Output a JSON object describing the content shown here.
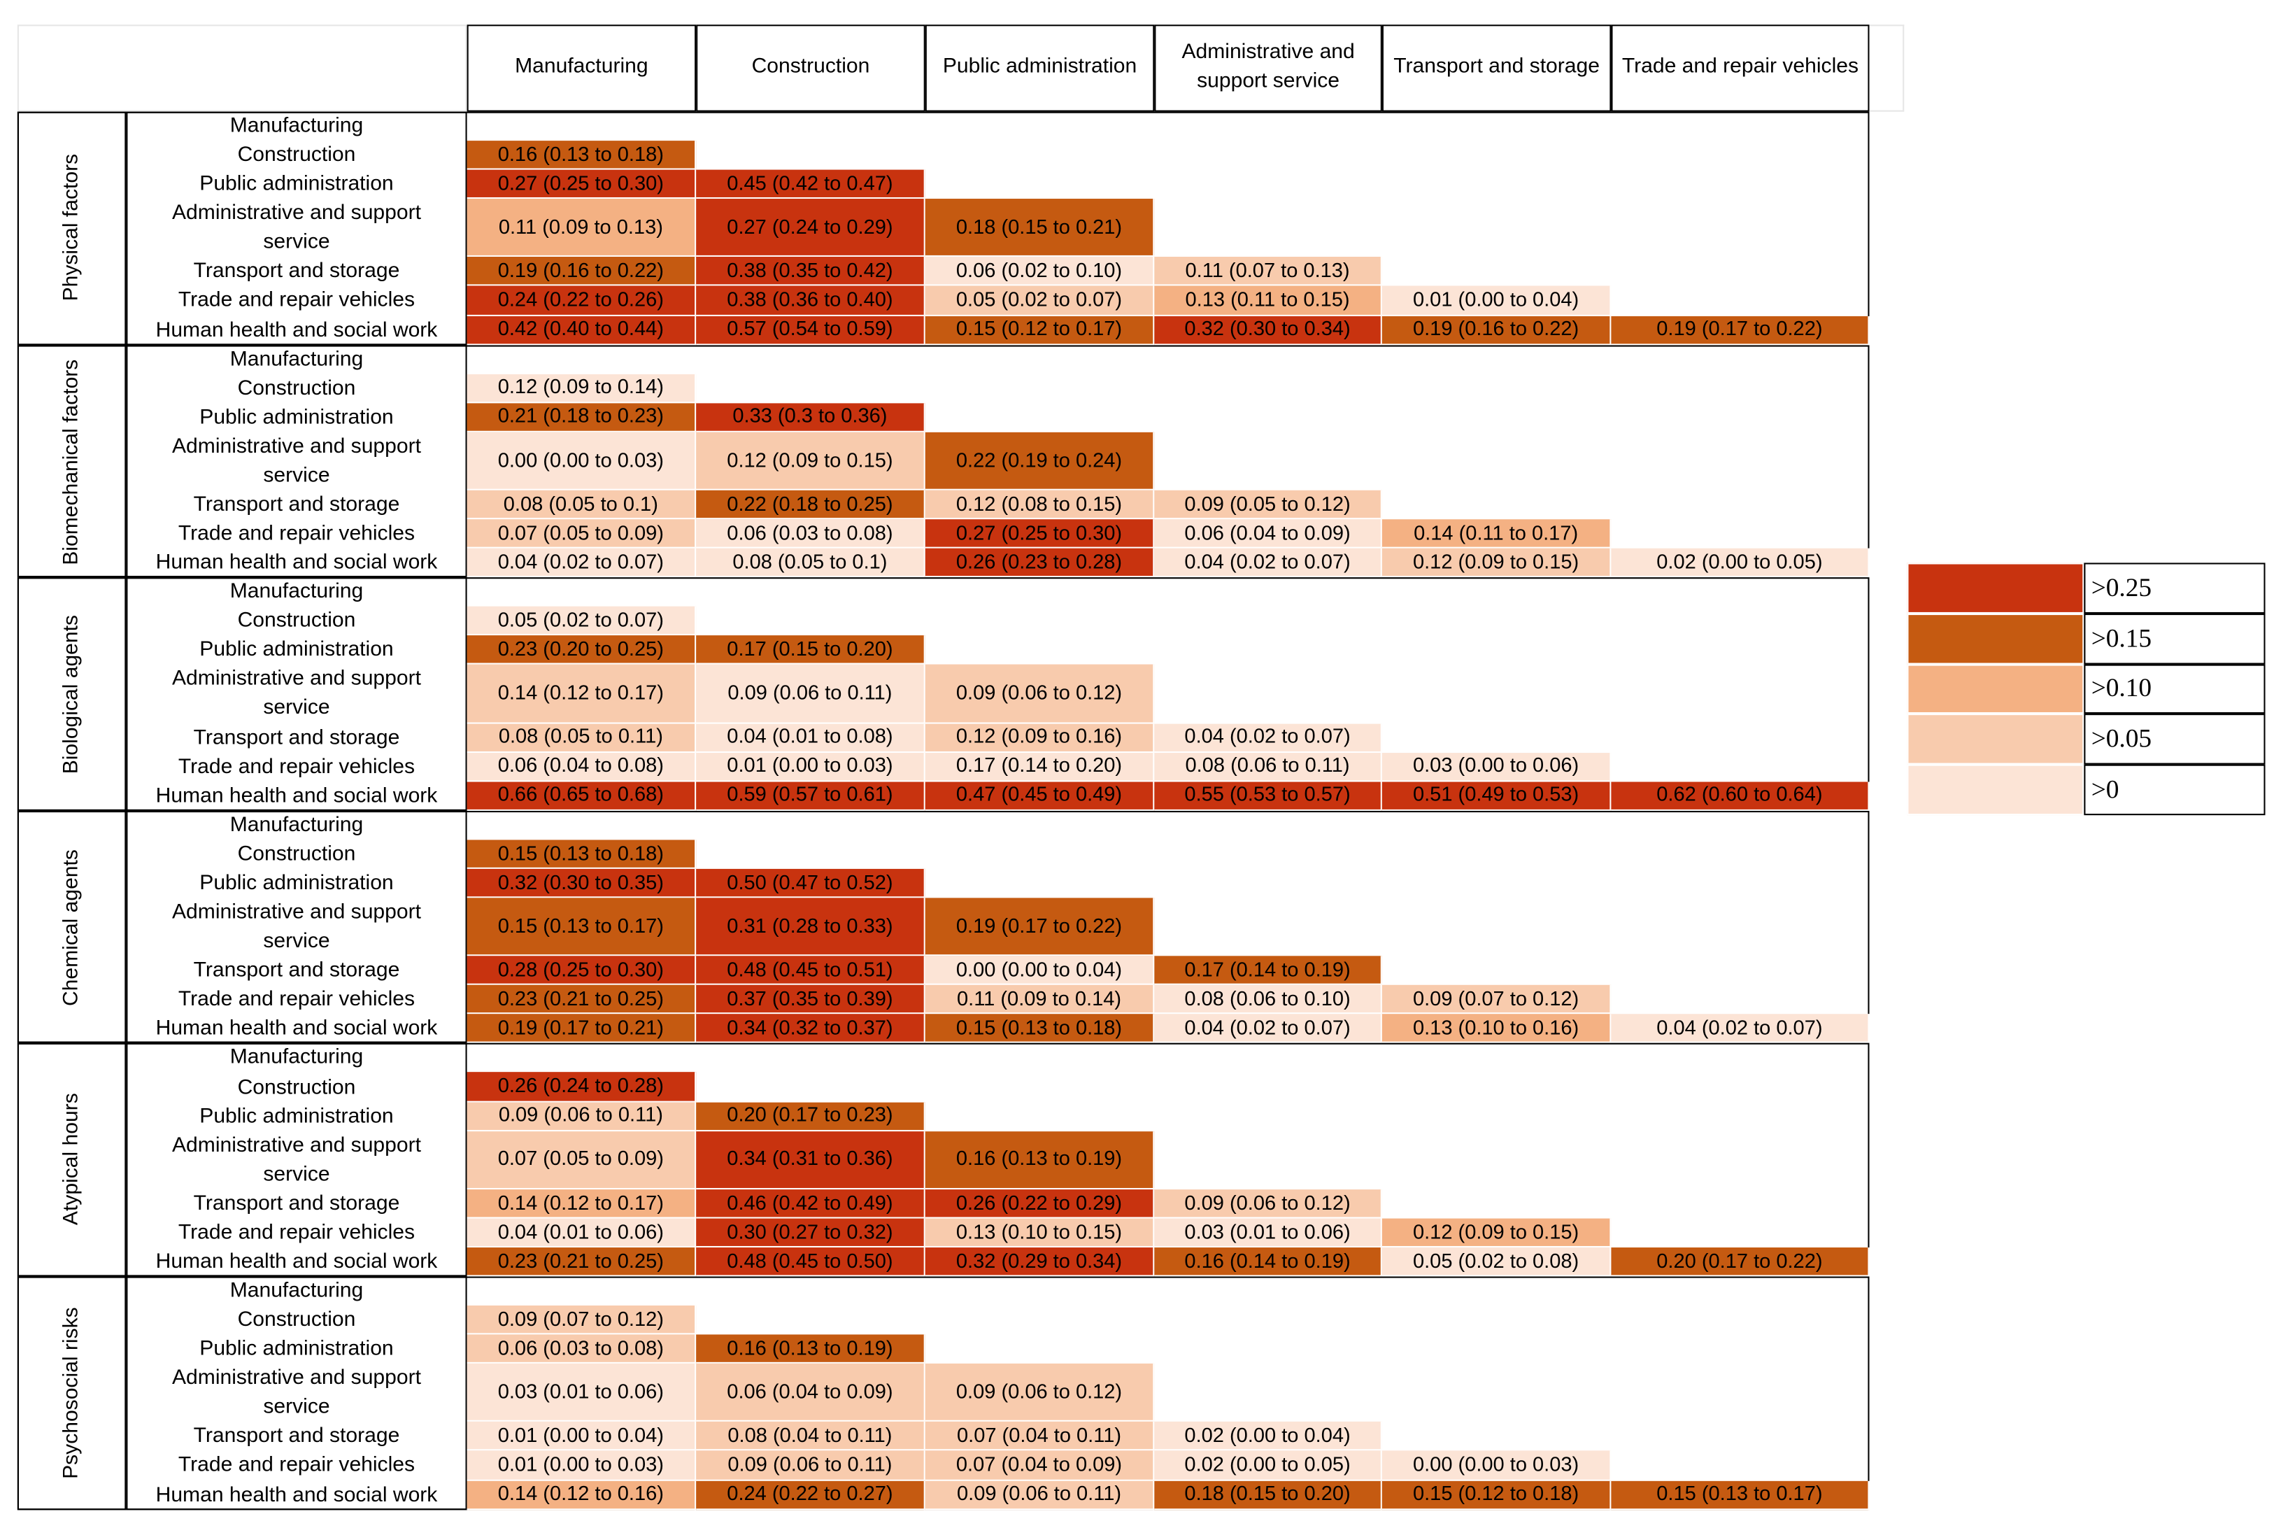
{
  "header": {
    "columns": [
      "Manufacturing",
      "Construction",
      "Public administration",
      "Administrative and support service",
      "Transport and storage",
      "Trade and repair vehicles"
    ]
  },
  "legend": [
    {
      "label": ">0.25",
      "color": "#c8330f"
    },
    {
      "label": ">0.15",
      "color": "#c55a11"
    },
    {
      "label": ">0.10",
      "color": "#f4b183"
    },
    {
      "label": ">0.05",
      "color": "#f8cbad"
    },
    {
      "label": ">0",
      "color": "#fce4d6"
    }
  ],
  "groups": [
    {
      "label": "Physical factors",
      "rows": [
        {
          "label": "Manufacturing",
          "cells": []
        },
        {
          "label": "Construction",
          "cells": [
            {
              "text": "0.16 (0.13 to 0.18)",
              "color": "#c55a11"
            }
          ]
        },
        {
          "label": "Public administration",
          "cells": [
            {
              "text": "0.27 (0.25 to 0.30)",
              "color": "#c8330f"
            },
            {
              "text": "0.45 (0.42 to 0.47)",
              "color": "#c8330f"
            }
          ]
        },
        {
          "label": "Administrative and support service",
          "cells": [
            {
              "text": "0.11 (0.09 to 0.13)",
              "color": "#f4b183"
            },
            {
              "text": "0.27 (0.24 to 0.29)",
              "color": "#c8330f"
            },
            {
              "text": "0.18 (0.15 to 0.21)",
              "color": "#c55a11"
            }
          ]
        },
        {
          "label": "Transport and storage",
          "cells": [
            {
              "text": "0.19 (0.16 to 0.22)",
              "color": "#c55a11"
            },
            {
              "text": "0.38 (0.35 to 0.42)",
              "color": "#c8330f"
            },
            {
              "text": "0.06 (0.02 to 0.10)",
              "color": "#fce4d6"
            },
            {
              "text": "0.11 (0.07 to 0.13)",
              "color": "#f8cbad"
            }
          ]
        },
        {
          "label": "Trade and repair vehicles",
          "cells": [
            {
              "text": "0.24 (0.22 to 0.26)",
              "color": "#c8330f"
            },
            {
              "text": "0.38 (0.36 to 0.40)",
              "color": "#c8330f"
            },
            {
              "text": "0.05 (0.02 to 0.07)",
              "color": "#f8cbad"
            },
            {
              "text": "0.13 (0.11 to 0.15)",
              "color": "#f4b183"
            },
            {
              "text": "0.01 (0.00 to 0.04)",
              "color": "#fce4d6"
            }
          ]
        },
        {
          "label": "Human health and social work",
          "cells": [
            {
              "text": "0.42 (0.40 to 0.44)",
              "color": "#c8330f"
            },
            {
              "text": "0.57 (0.54 to 0.59)",
              "color": "#c8330f"
            },
            {
              "text": "0.15 (0.12 to 0.17)",
              "color": "#c55a11"
            },
            {
              "text": "0.32 (0.30 to 0.34)",
              "color": "#c8330f"
            },
            {
              "text": "0.19 (0.16 to 0.22)",
              "color": "#c55a11"
            },
            {
              "text": "0.19 (0.17 to 0.22)",
              "color": "#c55a11"
            }
          ]
        }
      ]
    },
    {
      "label": "Biomechanical factors",
      "rows": [
        {
          "label": "Manufacturing",
          "cells": []
        },
        {
          "label": "Construction",
          "cells": [
            {
              "text": "0.12 (0.09 to 0.14)",
              "color": "#fce4d6"
            }
          ]
        },
        {
          "label": "Public administration",
          "cells": [
            {
              "text": "0.21 (0.18 to 0.23)",
              "color": "#c55a11"
            },
            {
              "text": "0.33 (0.3 to 0.36)",
              "color": "#c8330f"
            }
          ]
        },
        {
          "label": "Administrative and support service",
          "cells": [
            {
              "text": "0.00 (0.00 to 0.03)",
              "color": "#fce4d6"
            },
            {
              "text": "0.12 (0.09 to 0.15)",
              "color": "#f8cbad"
            },
            {
              "text": "0.22 (0.19 to 0.24)",
              "color": "#c55a11"
            }
          ]
        },
        {
          "label": "Transport and storage",
          "cells": [
            {
              "text": "0.08 (0.05 to 0.1)",
              "color": "#f8cbad"
            },
            {
              "text": "0.22 (0.18 to 0.25)",
              "color": "#c55a11"
            },
            {
              "text": "0.12 (0.08 to 0.15)",
              "color": "#f8cbad"
            },
            {
              "text": "0.09 (0.05 to 0.12)",
              "color": "#f8cbad"
            }
          ]
        },
        {
          "label": "Trade and repair vehicles",
          "cells": [
            {
              "text": "0.07 (0.05 to 0.09)",
              "color": "#f8cbad"
            },
            {
              "text": "0.06 (0.03 to 0.08)",
              "color": "#fce4d6"
            },
            {
              "text": "0.27 (0.25 to 0.30)",
              "color": "#c8330f"
            },
            {
              "text": "0.06 (0.04 to 0.09)",
              "color": "#fce4d6"
            },
            {
              "text": "0.14 (0.11 to 0.17)",
              "color": "#f4b183"
            }
          ]
        },
        {
          "label": "Human health and social work",
          "cells": [
            {
              "text": "0.04 (0.02 to 0.07)",
              "color": "#fce4d6"
            },
            {
              "text": "0.08 (0.05 to 0.1)",
              "color": "#fce4d6"
            },
            {
              "text": "0.26 (0.23 to 0.28)",
              "color": "#c8330f"
            },
            {
              "text": "0.04 (0.02 to 0.07)",
              "color": "#fce4d6"
            },
            {
              "text": "0.12 (0.09 to 0.15)",
              "color": "#f8cbad"
            },
            {
              "text": "0.02 (0.00 to 0.05)",
              "color": "#fce4d6"
            }
          ]
        }
      ]
    },
    {
      "label": "Biological agents",
      "rows": [
        {
          "label": "Manufacturing",
          "cells": []
        },
        {
          "label": "Construction",
          "cells": [
            {
              "text": "0.05 (0.02 to 0.07)",
              "color": "#fce4d6"
            }
          ]
        },
        {
          "label": "Public administration",
          "cells": [
            {
              "text": "0.23 (0.20 to 0.25)",
              "color": "#c55a11"
            },
            {
              "text": "0.17 (0.15 to 0.20)",
              "color": "#c55a11"
            }
          ]
        },
        {
          "label": "Administrative and support service",
          "cells": [
            {
              "text": "0.14 (0.12 to 0.17)",
              "color": "#f8cbad"
            },
            {
              "text": "0.09 (0.06 to 0.11)",
              "color": "#fce4d6"
            },
            {
              "text": "0.09 (0.06 to 0.12)",
              "color": "#f8cbad"
            }
          ]
        },
        {
          "label": "Transport and storage",
          "cells": [
            {
              "text": "0.08 (0.05 to 0.11)",
              "color": "#f8cbad"
            },
            {
              "text": "0.04 (0.01 to 0.08)",
              "color": "#fce4d6"
            },
            {
              "text": "0.12 (0.09 to 0.16)",
              "color": "#f8cbad"
            },
            {
              "text": "0.04 (0.02 to 0.07)",
              "color": "#fce4d6"
            }
          ]
        },
        {
          "label": "Trade and repair vehicles",
          "cells": [
            {
              "text": "0.06 (0.04 to 0.08)",
              "color": "#fce4d6"
            },
            {
              "text": "0.01 (0.00 to 0.03)",
              "color": "#fce4d6"
            },
            {
              "text": "0.17 (0.14 to 0.20)",
              "color": "#fce4d6"
            },
            {
              "text": "0.08 (0.06 to 0.11)",
              "color": "#fce4d6"
            },
            {
              "text": "0.03 (0.00 to 0.06)",
              "color": "#fce4d6"
            }
          ]
        },
        {
          "label": "Human health and social work",
          "cells": [
            {
              "text": "0.66 (0.65 to 0.68)",
              "color": "#c8330f"
            },
            {
              "text": "0.59 (0.57 to 0.61)",
              "color": "#c8330f"
            },
            {
              "text": "0.47 (0.45 to 0.49)",
              "color": "#c8330f"
            },
            {
              "text": "0.55 (0.53 to 0.57)",
              "color": "#c8330f"
            },
            {
              "text": "0.51 (0.49 to 0.53)",
              "color": "#c8330f"
            },
            {
              "text": "0.62 (0.60 to 0.64)",
              "color": "#c8330f"
            }
          ]
        }
      ]
    },
    {
      "label": "Chemical agents",
      "rows": [
        {
          "label": "Manufacturing",
          "cells": []
        },
        {
          "label": "Construction",
          "cells": [
            {
              "text": "0.15 (0.13 to 0.18)",
              "color": "#c55a11"
            }
          ]
        },
        {
          "label": "Public administration",
          "cells": [
            {
              "text": "0.32 (0.30 to 0.35)",
              "color": "#c8330f"
            },
            {
              "text": "0.50 (0.47 to 0.52)",
              "color": "#c8330f"
            }
          ]
        },
        {
          "label": "Administrative and support service",
          "cells": [
            {
              "text": "0.15 (0.13 to 0.17)",
              "color": "#c55a11"
            },
            {
              "text": "0.31 (0.28 to 0.33)",
              "color": "#c8330f"
            },
            {
              "text": "0.19 (0.17 to 0.22)",
              "color": "#c55a11"
            }
          ]
        },
        {
          "label": "Transport and storage",
          "cells": [
            {
              "text": "0.28 (0.25 to 0.30)",
              "color": "#c8330f"
            },
            {
              "text": "0.48 (0.45 to 0.51)",
              "color": "#c8330f"
            },
            {
              "text": "0.00 (0.00 to 0.04)",
              "color": "#fce4d6"
            },
            {
              "text": "0.17 (0.14 to 0.19)",
              "color": "#c55a11"
            }
          ]
        },
        {
          "label": "Trade and repair vehicles",
          "cells": [
            {
              "text": "0.23 (0.21 to 0.25)",
              "color": "#c55a11"
            },
            {
              "text": "0.37 (0.35 to 0.39)",
              "color": "#c8330f"
            },
            {
              "text": "0.11 (0.09 to 0.14)",
              "color": "#f8cbad"
            },
            {
              "text": "0.08 (0.06 to 0.10)",
              "color": "#fce4d6"
            },
            {
              "text": "0.09 (0.07 to 0.12)",
              "color": "#f8cbad"
            }
          ]
        },
        {
          "label": "Human health and social work",
          "cells": [
            {
              "text": "0.19 (0.17 to 0.21)",
              "color": "#c55a11"
            },
            {
              "text": "0.34 (0.32 to 0.37)",
              "color": "#c8330f"
            },
            {
              "text": "0.15 (0.13 to 0.18)",
              "color": "#c55a11"
            },
            {
              "text": "0.04 (0.02 to 0.07)",
              "color": "#fce4d6"
            },
            {
              "text": "0.13 (0.10 to 0.16)",
              "color": "#f4b183"
            },
            {
              "text": "0.04 (0.02 to 0.07)",
              "color": "#fce4d6"
            }
          ]
        }
      ]
    },
    {
      "label": "Atypical hours",
      "rows": [
        {
          "label": "Manufacturing",
          "cells": []
        },
        {
          "label": "Construction",
          "cells": [
            {
              "text": "0.26 (0.24 to 0.28)",
              "color": "#c8330f"
            }
          ]
        },
        {
          "label": "Public administration",
          "cells": [
            {
              "text": "0.09 (0.06 to 0.11)",
              "color": "#f8cbad"
            },
            {
              "text": "0.20 (0.17 to 0.23)",
              "color": "#c55a11"
            }
          ]
        },
        {
          "label": "Administrative and support service",
          "cells": [
            {
              "text": "0.07 (0.05 to 0.09)",
              "color": "#f8cbad"
            },
            {
              "text": "0.34 (0.31 to 0.36)",
              "color": "#c8330f"
            },
            {
              "text": "0.16 (0.13 to 0.19)",
              "color": "#c55a11"
            }
          ]
        },
        {
          "label": "Transport and storage",
          "cells": [
            {
              "text": "0.14 (0.12 to 0.17)",
              "color": "#f4b183"
            },
            {
              "text": "0.46 (0.42 to 0.49)",
              "color": "#c8330f"
            },
            {
              "text": "0.26 (0.22 to 0.29)",
              "color": "#c8330f"
            },
            {
              "text": "0.09 (0.06 to 0.12)",
              "color": "#f8cbad"
            }
          ]
        },
        {
          "label": "Trade and repair vehicles",
          "cells": [
            {
              "text": "0.04 (0.01 to 0.06)",
              "color": "#fce4d6"
            },
            {
              "text": "0.30 (0.27 to 0.32)",
              "color": "#c8330f"
            },
            {
              "text": "0.13 (0.10 to 0.15)",
              "color": "#f8cbad"
            },
            {
              "text": "0.03 (0.01 to 0.06)",
              "color": "#fce4d6"
            },
            {
              "text": "0.12 (0.09 to 0.15)",
              "color": "#f4b183"
            }
          ]
        },
        {
          "label": "Human health and social work",
          "cells": [
            {
              "text": "0.23 (0.21 to 0.25)",
              "color": "#c55a11"
            },
            {
              "text": "0.48 (0.45 to 0.50)",
              "color": "#c8330f"
            },
            {
              "text": "0.32 (0.29 to 0.34)",
              "color": "#c8330f"
            },
            {
              "text": "0.16 (0.14 to 0.19)",
              "color": "#c55a11"
            },
            {
              "text": "0.05 (0.02 to 0.08)",
              "color": "#fce4d6"
            },
            {
              "text": "0.20 (0.17 to 0.22)",
              "color": "#c55a11"
            }
          ]
        }
      ]
    },
    {
      "label": "Psychosocial risks",
      "rows": [
        {
          "label": "Manufacturing",
          "cells": []
        },
        {
          "label": "Construction",
          "cells": [
            {
              "text": "0.09 (0.07 to 0.12)",
              "color": "#f8cbad"
            }
          ]
        },
        {
          "label": "Public administration",
          "cells": [
            {
              "text": "0.06 (0.03 to 0.08)",
              "color": "#f8cbad"
            },
            {
              "text": "0.16 (0.13 to 0.19)",
              "color": "#c55a11"
            }
          ]
        },
        {
          "label": "Administrative and support service",
          "cells": [
            {
              "text": "0.03 (0.01 to 0.06)",
              "color": "#fce4d6"
            },
            {
              "text": "0.06 (0.04 to 0.09)",
              "color": "#f8cbad"
            },
            {
              "text": "0.09 (0.06 to 0.12)",
              "color": "#f8cbad"
            }
          ]
        },
        {
          "label": "Transport and storage",
          "cells": [
            {
              "text": "0.01 (0.00 to 0.04)",
              "color": "#fce4d6"
            },
            {
              "text": "0.08 (0.04 to 0.11)",
              "color": "#f8cbad"
            },
            {
              "text": "0.07 (0.04 to 0.11)",
              "color": "#f8cbad"
            },
            {
              "text": "0.02 (0.00 to 0.04)",
              "color": "#fce4d6"
            }
          ]
        },
        {
          "label": "Trade and repair vehicles",
          "cells": [
            {
              "text": "0.01 (0.00 to 0.03)",
              "color": "#fce4d6"
            },
            {
              "text": "0.09 (0.06 to 0.11)",
              "color": "#f8cbad"
            },
            {
              "text": "0.07 (0.04 to 0.09)",
              "color": "#f8cbad"
            },
            {
              "text": "0.02 (0.00 to 0.05)",
              "color": "#fce4d6"
            },
            {
              "text": "0.00 (0.00 to 0.03)",
              "color": "#fce4d6"
            }
          ]
        },
        {
          "label": "Human health and social work",
          "cells": [
            {
              "text": "0.14 (0.12 to 0.16)",
              "color": "#f4b183"
            },
            {
              "text": "0.24 (0.22 to 0.27)",
              "color": "#c55a11"
            },
            {
              "text": "0.09 (0.06 to 0.11)",
              "color": "#f8cbad"
            },
            {
              "text": "0.18 (0.15 to 0.20)",
              "color": "#c55a11"
            },
            {
              "text": "0.15 (0.12 to 0.18)",
              "color": "#c55a11"
            },
            {
              "text": "0.15 (0.13 to 0.17)",
              "color": "#c55a11"
            }
          ]
        }
      ]
    }
  ]
}
